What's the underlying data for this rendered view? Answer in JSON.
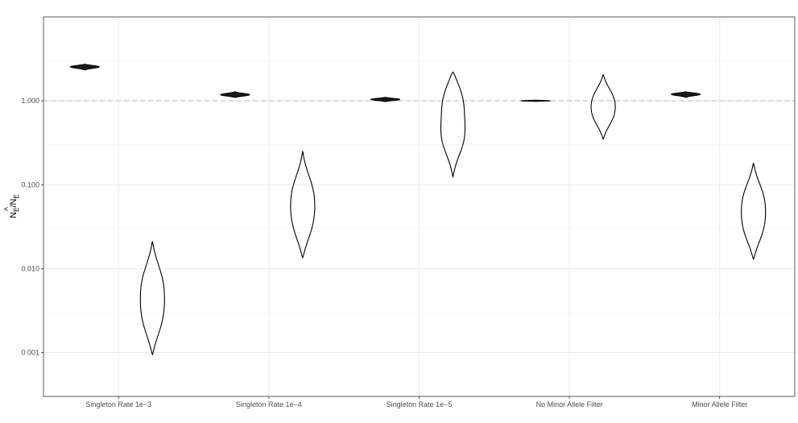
{
  "chart_data": {
    "type": "violin",
    "ylabel": "N̂E/NE",
    "ylabel_main": "N",
    "ylabel_sub": "E",
    "ylabel_sep": "/",
    "yscale": "log",
    "ylim": [
      0.0003,
      10
    ],
    "yticks": [
      0.001,
      0.01,
      0.1,
      1
    ],
    "ytick_labels": [
      "0.001",
      "0.010",
      "0.100",
      "1.000"
    ],
    "reference_line": 1,
    "grid": true,
    "categories": [
      "Singleton Rate 1e−3",
      "Singleton Rate 1e−4",
      "Singleton Rate 1e−5",
      "No Minor Allele Filter",
      "Minor Allele Filter"
    ],
    "series": [
      {
        "style": "filled",
        "color": "#1a1a1a",
        "violins": [
          {
            "min": 2.33,
            "max": 2.72,
            "modes": [
              2.55
            ],
            "halfwidth": 0.27
          },
          {
            "min": 1.1,
            "max": 1.28,
            "modes": [
              1.18
            ],
            "halfwidth": 0.27
          },
          {
            "min": 0.98,
            "max": 1.1,
            "modes": [
              1.04
            ],
            "halfwidth": 0.27
          },
          {
            "min": 0.985,
            "max": 1.02,
            "modes": [
              1.0
            ],
            "halfwidth": 0.27
          },
          {
            "min": 1.1,
            "max": 1.28,
            "modes": [
              1.2
            ],
            "halfwidth": 0.27
          }
        ]
      },
      {
        "style": "outline",
        "color": "#000000",
        "violins": [
          {
            "min": 0.00095,
            "max": 0.021,
            "modes": [
              0.0075,
              0.0023
            ],
            "halfwidth": 0.27
          },
          {
            "min": 0.0135,
            "max": 0.25,
            "modes": [
              0.09,
              0.031
            ],
            "halfwidth": 0.27
          },
          {
            "min": 0.125,
            "max": 2.2,
            "modes": [
              1.2,
              0.34
            ],
            "halfwidth": 0.27
          },
          {
            "min": 0.35,
            "max": 2.05,
            "modes": [
              1.15,
              0.62
            ],
            "halfwidth": 0.27
          },
          {
            "min": 0.013,
            "max": 0.18,
            "modes": [
              0.075,
              0.028
            ],
            "halfwidth": 0.27
          }
        ]
      }
    ]
  }
}
